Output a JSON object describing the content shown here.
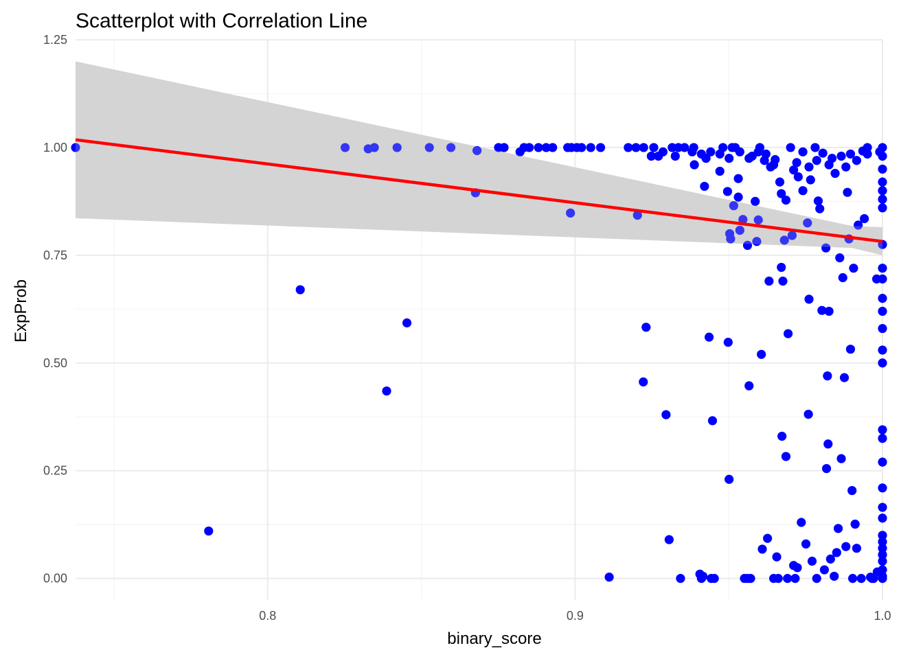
{
  "chart_data": {
    "type": "scatter",
    "title": "Scatterplot with Correlation Line",
    "xlabel": "binary_score",
    "ylabel": "ExpProb",
    "xlim": [
      0.7375,
      1.0
    ],
    "ylim": [
      -0.05,
      1.25
    ],
    "x_ticks": [
      0.8,
      0.9,
      1.0
    ],
    "x_tick_labels": [
      "0.8",
      "0.9",
      "1.0"
    ],
    "y_ticks": [
      0.0,
      0.25,
      0.5,
      0.75,
      1.0,
      1.25
    ],
    "y_tick_labels": [
      "0.00",
      "0.25",
      "0.50",
      "0.75",
      "1.00",
      "1.25"
    ],
    "grid": true,
    "point_color": "#0000ff",
    "line_color": "#ff0000",
    "ribbon_color": "#d3d3d3",
    "regression_line": {
      "x": [
        0.7375,
        1.0
      ],
      "y": [
        1.018,
        0.782
      ]
    },
    "confidence_band": {
      "x": [
        0.7375,
        0.99,
        1.0
      ],
      "upper": [
        1.2,
        0.818,
        0.815
      ],
      "lower": [
        0.836,
        0.767,
        0.75
      ]
    },
    "points": [
      [
        0.7375,
        1.0
      ],
      [
        0.7808,
        0.11
      ],
      [
        0.8106,
        0.67
      ],
      [
        0.8387,
        0.435
      ],
      [
        0.8453,
        0.593
      ],
      [
        0.8252,
        1.0
      ],
      [
        0.8327,
        0.997
      ],
      [
        0.8347,
        1.0
      ],
      [
        0.8421,
        1.0
      ],
      [
        0.8526,
        1.0
      ],
      [
        0.8596,
        1.0
      ],
      [
        0.8676,
        0.895
      ],
      [
        0.8681,
        0.993
      ],
      [
        0.8751,
        1.0
      ],
      [
        0.8769,
        1.0
      ],
      [
        0.8821,
        0.99
      ],
      [
        0.8834,
        1.0
      ],
      [
        0.8851,
        1.0
      ],
      [
        0.8881,
        1.0
      ],
      [
        0.8906,
        1.0
      ],
      [
        0.8927,
        1.0
      ],
      [
        0.8976,
        1.0
      ],
      [
        0.8988,
        1.0
      ],
      [
        0.9006,
        1.0
      ],
      [
        0.9021,
        1.0
      ],
      [
        0.9051,
        1.0
      ],
      [
        0.9083,
        1.0
      ],
      [
        0.8985,
        0.848
      ],
      [
        0.9111,
        0.003
      ],
      [
        0.9173,
        1.0
      ],
      [
        0.9198,
        1.0
      ],
      [
        0.9203,
        0.843
      ],
      [
        0.9222,
        0.456
      ],
      [
        0.9231,
        0.583
      ],
      [
        0.9223,
        1.0
      ],
      [
        0.9248,
        0.98
      ],
      [
        0.9256,
        1.0
      ],
      [
        0.9271,
        0.98
      ],
      [
        0.9296,
        0.38
      ],
      [
        0.9306,
        0.09
      ],
      [
        0.9326,
        0.98
      ],
      [
        0.9336,
        1.0
      ],
      [
        0.9343,
        0.0
      ],
      [
        0.9386,
        1.0
      ],
      [
        0.9388,
        0.96
      ],
      [
        0.9406,
        0.01
      ],
      [
        0.9411,
        0.0
      ],
      [
        0.9421,
        0.91
      ],
      [
        0.9426,
        0.975
      ],
      [
        0.9436,
        0.56
      ],
      [
        0.9447,
        0.366
      ],
      [
        0.9443,
        0.0
      ],
      [
        0.9471,
        0.945
      ],
      [
        0.9481,
        1.0
      ],
      [
        0.9496,
        0.898
      ],
      [
        0.9498,
        0.548
      ],
      [
        0.9501,
        0.23
      ],
      [
        0.9503,
        0.8
      ],
      [
        0.9506,
        0.788
      ],
      [
        0.9511,
        1.0
      ],
      [
        0.9516,
        0.865
      ],
      [
        0.9521,
        1.0
      ],
      [
        0.9531,
        0.885
      ],
      [
        0.9536,
        0.808
      ],
      [
        0.9531,
        0.928
      ],
      [
        0.9546,
        0.833
      ],
      [
        0.9551,
        0.0
      ],
      [
        0.9561,
        0.773
      ],
      [
        0.9566,
        0.447
      ],
      [
        0.9571,
        0.0
      ],
      [
        0.9576,
        0.98
      ],
      [
        0.9586,
        0.875
      ],
      [
        0.9591,
        0.782
      ],
      [
        0.9596,
        0.832
      ],
      [
        0.9606,
        0.52
      ],
      [
        0.9601,
        1.0
      ],
      [
        0.9616,
        0.97
      ],
      [
        0.9626,
        0.093
      ],
      [
        0.9631,
        0.69
      ],
      [
        0.9636,
        0.955
      ],
      [
        0.9646,
        0.96
      ],
      [
        0.9656,
        0.05
      ],
      [
        0.9661,
        0.0
      ],
      [
        0.9666,
        0.92
      ],
      [
        0.9671,
        0.722
      ],
      [
        0.9673,
        0.33
      ],
      [
        0.9676,
        0.69
      ],
      [
        0.9681,
        0.785
      ],
      [
        0.9686,
        0.283
      ],
      [
        0.9693,
        0.568
      ],
      [
        0.9701,
        1.0
      ],
      [
        0.9706,
        0.796
      ],
      [
        0.9711,
        0.03
      ],
      [
        0.9716,
        0.0
      ],
      [
        0.9721,
        0.965
      ],
      [
        0.9736,
        0.13
      ],
      [
        0.9741,
        0.9
      ],
      [
        0.9751,
        0.08
      ],
      [
        0.9756,
        0.825
      ],
      [
        0.9759,
        0.381
      ],
      [
        0.9761,
        0.648
      ],
      [
        0.9766,
        0.925
      ],
      [
        0.9771,
        0.04
      ],
      [
        0.9781,
        1.0
      ],
      [
        0.9791,
        0.876
      ],
      [
        0.9796,
        0.858
      ],
      [
        0.9803,
        0.622
      ],
      [
        0.9816,
        0.767
      ],
      [
        0.9818,
        0.255
      ],
      [
        0.9821,
        0.47
      ],
      [
        0.9823,
        0.312
      ],
      [
        0.9826,
        0.62
      ],
      [
        0.9831,
        0.045
      ],
      [
        0.9836,
        0.975
      ],
      [
        0.9851,
        0.06
      ],
      [
        0.9856,
        0.116
      ],
      [
        0.9861,
        0.744
      ],
      [
        0.9866,
        0.278
      ],
      [
        0.9871,
        0.698
      ],
      [
        0.9876,
        0.466
      ],
      [
        0.9881,
        0.074
      ],
      [
        0.9886,
        0.896
      ],
      [
        0.9891,
        0.788
      ],
      [
        0.9896,
        0.532
      ],
      [
        0.9901,
        0.204
      ],
      [
        0.9906,
        0.72
      ],
      [
        0.9911,
        0.126
      ],
      [
        0.9916,
        0.07
      ],
      [
        0.9921,
        0.82
      ],
      [
        0.9931,
        0.0
      ],
      [
        0.9941,
        0.835
      ],
      [
        0.9951,
        1.0
      ],
      [
        0.9961,
        0.003
      ],
      [
        0.9971,
        0.0
      ],
      [
        0.9981,
        0.695
      ],
      [
        0.9991,
        0.99
      ],
      [
        1.0,
        0.775
      ],
      [
        1.0,
        0.72
      ],
      [
        1.0,
        0.695
      ],
      [
        1.0,
        0.65
      ],
      [
        1.0,
        0.62
      ],
      [
        1.0,
        0.58
      ],
      [
        1.0,
        0.53
      ],
      [
        1.0,
        0.5
      ],
      [
        1.0,
        0.345
      ],
      [
        1.0,
        0.325
      ],
      [
        1.0,
        0.27
      ],
      [
        1.0,
        0.21
      ],
      [
        1.0,
        0.165
      ],
      [
        1.0,
        0.14
      ],
      [
        1.0,
        0.1
      ],
      [
        1.0,
        0.085
      ],
      [
        1.0,
        0.07
      ],
      [
        1.0,
        0.055
      ],
      [
        1.0,
        0.04
      ],
      [
        1.0,
        0.02
      ],
      [
        1.0,
        0.005
      ],
      [
        1.0,
        0.0
      ],
      [
        1.0,
        0.86
      ],
      [
        1.0,
        0.88
      ],
      [
        1.0,
        0.9
      ],
      [
        1.0,
        0.92
      ],
      [
        1.0,
        0.95
      ],
      [
        1.0,
        0.98
      ],
      [
        1.0,
        1.0
      ],
      [
        0.9691,
        0.0
      ],
      [
        0.9723,
        0.025
      ],
      [
        0.9786,
        0.0
      ],
      [
        0.9811,
        0.02
      ],
      [
        0.9843,
        0.005
      ],
      [
        0.9903,
        0.0
      ],
      [
        0.9966,
        0.0
      ],
      [
        0.9983,
        0.015
      ],
      [
        0.9646,
        0.0
      ],
      [
        0.9609,
        0.068
      ],
      [
        0.9453,
        0.0
      ],
      [
        0.9416,
        0.005
      ],
      [
        0.9561,
        0.0
      ],
      [
        0.9651,
        0.972
      ],
      [
        0.9671,
        0.893
      ],
      [
        0.9686,
        0.878
      ],
      [
        0.9711,
        0.948
      ],
      [
        0.9726,
        0.932
      ],
      [
        0.9741,
        0.99
      ],
      [
        0.9761,
        0.955
      ],
      [
        0.9786,
        0.97
      ],
      [
        0.9806,
        0.987
      ],
      [
        0.9826,
        0.96
      ],
      [
        0.9846,
        0.94
      ],
      [
        0.9866,
        0.98
      ],
      [
        0.9881,
        0.955
      ],
      [
        0.9896,
        0.985
      ],
      [
        0.9916,
        0.97
      ],
      [
        0.9936,
        0.992
      ],
      [
        0.9951,
        0.985
      ],
      [
        0.9621,
        0.985
      ],
      [
        0.9596,
        0.99
      ],
      [
        0.9566,
        0.975
      ],
      [
        0.9536,
        0.99
      ],
      [
        0.9501,
        0.975
      ],
      [
        0.9471,
        0.985
      ],
      [
        0.9441,
        0.99
      ],
      [
        0.9411,
        0.985
      ],
      [
        0.9381,
        0.99
      ],
      [
        0.9356,
        1.0
      ],
      [
        0.9286,
        0.99
      ],
      [
        0.9316,
        1.0
      ]
    ]
  }
}
